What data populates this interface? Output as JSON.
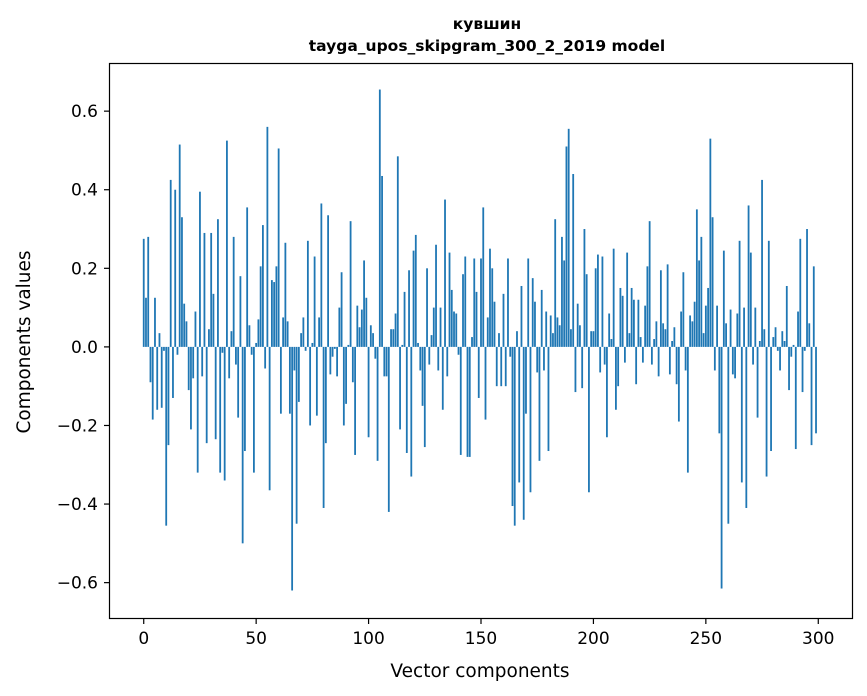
{
  "chart_data": {
    "type": "bar",
    "title": "кувшин",
    "subtitle": "tayga_upos_skipgram_300_2_2019 model",
    "xlabel": "Vector components",
    "ylabel": "Components values",
    "xlim": [
      -15,
      315
    ],
    "ylim": [
      -0.69,
      0.72
    ],
    "xticks": [
      0,
      50,
      100,
      150,
      200,
      250,
      300
    ],
    "xtick_labels": [
      "0",
      "50",
      "100",
      "150",
      "200",
      "250",
      "300"
    ],
    "yticks": [
      -0.6,
      -0.4,
      -0.2,
      0.0,
      0.2,
      0.4,
      0.6
    ],
    "ytick_labels": [
      "−0.6",
      "−0.4",
      "−0.2",
      "0.0",
      "0.2",
      "0.4",
      "0.6"
    ],
    "bar_color": "#1f77b4",
    "x": [
      0,
      1,
      2,
      3,
      4,
      5,
      6,
      7,
      8,
      9,
      10,
      11,
      12,
      13,
      14,
      15,
      16,
      17,
      18,
      19,
      20,
      21,
      22,
      23,
      24,
      25,
      26,
      27,
      28,
      29,
      30,
      31,
      32,
      33,
      34,
      35,
      36,
      37,
      38,
      39,
      40,
      41,
      42,
      43,
      44,
      45,
      46,
      47,
      48,
      49,
      50,
      51,
      52,
      53,
      54,
      55,
      56,
      57,
      58,
      59,
      60,
      61,
      62,
      63,
      64,
      65,
      66,
      67,
      68,
      69,
      70,
      71,
      72,
      73,
      74,
      75,
      76,
      77,
      78,
      79,
      80,
      81,
      82,
      83,
      84,
      85,
      86,
      87,
      88,
      89,
      90,
      91,
      92,
      93,
      94,
      95,
      96,
      97,
      98,
      99,
      100,
      101,
      102,
      103,
      104,
      105,
      106,
      107,
      108,
      109,
      110,
      111,
      112,
      113,
      114,
      115,
      116,
      117,
      118,
      119,
      120,
      121,
      122,
      123,
      124,
      125,
      126,
      127,
      128,
      129,
      130,
      131,
      132,
      133,
      134,
      135,
      136,
      137,
      138,
      139,
      140,
      141,
      142,
      143,
      144,
      145,
      146,
      147,
      148,
      149,
      150,
      151,
      152,
      153,
      154,
      155,
      156,
      157,
      158,
      159,
      160,
      161,
      162,
      163,
      164,
      165,
      166,
      167,
      168,
      169,
      170,
      171,
      172,
      173,
      174,
      175,
      176,
      177,
      178,
      179,
      180,
      181,
      182,
      183,
      184,
      185,
      186,
      187,
      188,
      189,
      190,
      191,
      192,
      193,
      194,
      195,
      196,
      197,
      198,
      199,
      200,
      201,
      202,
      203,
      204,
      205,
      206,
      207,
      208,
      209,
      210,
      211,
      212,
      213,
      214,
      215,
      216,
      217,
      218,
      219,
      220,
      221,
      222,
      223,
      224,
      225,
      226,
      227,
      228,
      229,
      230,
      231,
      232,
      233,
      234,
      235,
      236,
      237,
      238,
      239,
      240,
      241,
      242,
      243,
      244,
      245,
      246,
      247,
      248,
      249,
      250,
      251,
      252,
      253,
      254,
      255,
      256,
      257,
      258,
      259,
      260,
      261,
      262,
      263,
      264,
      265,
      266,
      267,
      268,
      269,
      270,
      271,
      272,
      273,
      274,
      275,
      276,
      277,
      278,
      279,
      280,
      281,
      282,
      283,
      284,
      285,
      286,
      287,
      288,
      289,
      290,
      291,
      292,
      293,
      294,
      295,
      296,
      297,
      298,
      299
    ],
    "values": [
      0.275,
      0.125,
      0.28,
      -0.09,
      -0.185,
      0.125,
      -0.16,
      0.035,
      -0.155,
      -0.01,
      -0.455,
      -0.25,
      0.425,
      -0.13,
      0.4,
      -0.02,
      0.515,
      0.33,
      0.11,
      0.065,
      -0.11,
      -0.21,
      -0.08,
      0.09,
      -0.32,
      0.395,
      -0.075,
      0.29,
      -0.245,
      0.045,
      0.29,
      0.135,
      -0.235,
      0.325,
      -0.32,
      -0.015,
      -0.34,
      0.525,
      -0.08,
      0.04,
      0.28,
      -0.045,
      -0.18,
      0.18,
      -0.5,
      -0.265,
      0.355,
      0.055,
      -0.02,
      -0.32,
      0.01,
      0.07,
      0.205,
      0.31,
      -0.055,
      0.56,
      -0.365,
      0.17,
      0.165,
      0.205,
      0.505,
      -0.17,
      0.075,
      0.265,
      0.065,
      -0.17,
      -0.62,
      -0.06,
      -0.45,
      -0.14,
      0.035,
      0.075,
      -0.01,
      0.27,
      -0.2,
      0.01,
      0.23,
      -0.175,
      0.075,
      0.365,
      -0.41,
      -0.245,
      0.335,
      -0.07,
      -0.025,
      -0.005,
      -0.075,
      0.1,
      0.19,
      -0.2,
      -0.145,
      0.005,
      0.32,
      -0.09,
      -0.275,
      0.105,
      0.05,
      0.095,
      0.22,
      0.125,
      -0.23,
      0.055,
      0.035,
      -0.03,
      -0.29,
      0.655,
      0.435,
      -0.075,
      -0.075,
      -0.42,
      0.045,
      0.045,
      0.085,
      0.485,
      -0.21,
      0.005,
      0.14,
      -0.27,
      0.195,
      -0.33,
      0.245,
      0.285,
      0.01,
      -0.06,
      -0.15,
      -0.255,
      0.2,
      -0.045,
      0.03,
      0.1,
      0.26,
      -0.06,
      0.1,
      -0.16,
      0.375,
      -0.075,
      0.24,
      0.145,
      0.09,
      0.085,
      -0.02,
      -0.275,
      0.185,
      0.23,
      -0.28,
      -0.28,
      0.025,
      0.225,
      0.14,
      -0.13,
      0.225,
      0.355,
      -0.185,
      0.075,
      0.25,
      0.2,
      0.115,
      -0.1,
      0.035,
      -0.1,
      0.135,
      -0.1,
      0.225,
      -0.025,
      -0.405,
      -0.455,
      0.04,
      -0.345,
      0.155,
      -0.44,
      -0.17,
      0.225,
      -0.37,
      0.175,
      0.115,
      -0.065,
      -0.29,
      0.145,
      -0.06,
      0.09,
      -0.265,
      0.08,
      0.035,
      0.325,
      0.075,
      0.055,
      0.28,
      0.22,
      0.51,
      0.555,
      0.045,
      0.44,
      -0.115,
      0.11,
      0.055,
      -0.105,
      0.3,
      0.185,
      -0.37,
      0.04,
      0.04,
      0.2,
      0.235,
      -0.065,
      0.23,
      -0.045,
      -0.23,
      0.085,
      0.02,
      0.25,
      -0.16,
      -0.1,
      0.15,
      0.13,
      -0.04,
      0.24,
      0.035,
      0.15,
      0.12,
      -0.095,
      0.12,
      0.025,
      -0.04,
      0.105,
      0.205,
      0.32,
      -0.045,
      0.02,
      0.065,
      -0.075,
      0.195,
      0.06,
      0.045,
      0.21,
      -0.07,
      0.015,
      0.05,
      -0.095,
      -0.19,
      0.09,
      0.19,
      -0.06,
      -0.32,
      0.08,
      0.065,
      0.115,
      0.35,
      0.22,
      0.28,
      0.035,
      0.105,
      0.15,
      0.53,
      0.33,
      -0.06,
      0.105,
      -0.22,
      -0.615,
      0.245,
      0.06,
      -0.45,
      0.095,
      -0.07,
      -0.08,
      0.085,
      0.27,
      -0.345,
      0.1,
      -0.41,
      0.36,
      0.24,
      -0.045,
      0.1,
      -0.18,
      0.015,
      0.425,
      0.045,
      -0.33,
      0.27,
      -0.265,
      0.025,
      0.05,
      -0.01,
      -0.06,
      0.04,
      0.015,
      0.155,
      -0.11,
      -0.025,
      0.005,
      -0.26,
      0.09,
      0.275,
      -0.115,
      -0.01,
      0.3,
      0.06,
      -0.25,
      0.205,
      -0.22
    ]
  }
}
